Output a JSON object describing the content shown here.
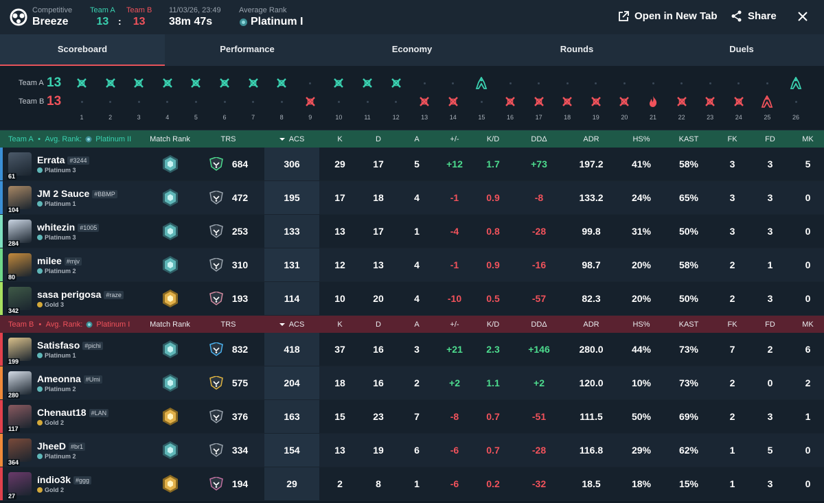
{
  "header": {
    "mode_label": "Competitive",
    "map_name": "Breeze",
    "team_a_label": "Team A",
    "team_b_label": "Team B",
    "team_a_score": "13",
    "team_b_score": "13",
    "score_sep": ":",
    "date": "11/03/26, 23:49",
    "duration": "38m 47s",
    "avg_rank_label": "Average Rank",
    "avg_rank": "Platinum I",
    "open_tab_label": "Open in New Tab",
    "share_label": "Share",
    "colors": {
      "team_a": "#3ad1b0",
      "team_b": "#f0525b"
    }
  },
  "tabs": [
    "Scoreboard",
    "Performance",
    "Economy",
    "Rounds",
    "Duels"
  ],
  "timeline": {
    "team_a_label": "Team A",
    "team_b_label": "Team B",
    "team_a_score": "13",
    "team_b_score": "13",
    "rounds": [
      {
        "n": "1",
        "w": "A",
        "t": "elim"
      },
      {
        "n": "2",
        "w": "A",
        "t": "elim"
      },
      {
        "n": "3",
        "w": "A",
        "t": "elim"
      },
      {
        "n": "4",
        "w": "A",
        "t": "elim"
      },
      {
        "n": "5",
        "w": "A",
        "t": "elim"
      },
      {
        "n": "6",
        "w": "A",
        "t": "elim"
      },
      {
        "n": "7",
        "w": "A",
        "t": "elim"
      },
      {
        "n": "8",
        "w": "A",
        "t": "elim"
      },
      {
        "n": "9",
        "w": "B",
        "t": "elim"
      },
      {
        "n": "10",
        "w": "A",
        "t": "elim"
      },
      {
        "n": "11",
        "w": "A",
        "t": "elim"
      },
      {
        "n": "12",
        "w": "A",
        "t": "elim"
      },
      {
        "n": "13",
        "w": "B",
        "t": "elim"
      },
      {
        "n": "14",
        "w": "B",
        "t": "elim"
      },
      {
        "n": "15",
        "w": "A",
        "t": "defuse"
      },
      {
        "n": "16",
        "w": "B",
        "t": "elim"
      },
      {
        "n": "17",
        "w": "B",
        "t": "elim"
      },
      {
        "n": "18",
        "w": "B",
        "t": "elim"
      },
      {
        "n": "19",
        "w": "B",
        "t": "elim"
      },
      {
        "n": "20",
        "w": "B",
        "t": "elim"
      },
      {
        "n": "21",
        "w": "B",
        "t": "detonate"
      },
      {
        "n": "22",
        "w": "B",
        "t": "elim"
      },
      {
        "n": "23",
        "w": "B",
        "t": "elim"
      },
      {
        "n": "24",
        "w": "B",
        "t": "elim"
      },
      {
        "n": "25",
        "w": "B",
        "t": "defuse"
      },
      {
        "n": "26",
        "w": "A",
        "t": "defuse"
      }
    ]
  },
  "columns": [
    "Match Rank",
    "TRS",
    "ACS",
    "K",
    "D",
    "A",
    "+/-",
    "K/D",
    "DDΔ",
    "ADR",
    "HS%",
    "KAST",
    "FK",
    "FD",
    "MK"
  ],
  "team_a": {
    "label": "Team A",
    "bullet": "•",
    "avg_rank_label": "Avg. Rank:",
    "avg_rank": "Platinum II",
    "players": [
      {
        "name": "Errata",
        "tag": "#3244",
        "rank": "Platinum 3",
        "rank_color": "#5fb7b8",
        "level": "61",
        "bar": "#3b8fd6",
        "avatar": "#4c5a6a",
        "badge": "plat",
        "trs_color": "#4ddc8e",
        "trs": "684",
        "acs": "306",
        "k": "29",
        "d": "17",
        "a": "5",
        "pm": "+12",
        "kd": "1.7",
        "dd": "+73",
        "adr": "197.2",
        "hs": "41%",
        "kast": "58%",
        "fk": "3",
        "fd": "3",
        "mk": "5"
      },
      {
        "name": "JM 2 Sauce",
        "tag": "#BBMP",
        "rank": "Platinum 1",
        "rank_color": "#5fb7b8",
        "level": "104",
        "bar": "#3b8fd6",
        "avatar": "#a88764",
        "badge": "plat",
        "trs_color": "#9aa4ae",
        "trs": "472",
        "acs": "195",
        "k": "17",
        "d": "18",
        "a": "4",
        "pm": "-1",
        "kd": "0.9",
        "dd": "-8",
        "adr": "133.2",
        "hs": "24%",
        "kast": "65%",
        "fk": "3",
        "fd": "3",
        "mk": "0"
      },
      {
        "name": "whitezin",
        "tag": "#1005",
        "rank": "Platinum 3",
        "rank_color": "#5fb7b8",
        "level": "284",
        "bar": "#7fe0c0",
        "avatar": "#c9d4e2",
        "badge": "plat",
        "trs_color": "#9aa4ae",
        "trs": "253",
        "acs": "133",
        "k": "13",
        "d": "17",
        "a": "1",
        "pm": "-4",
        "kd": "0.8",
        "dd": "-28",
        "adr": "99.8",
        "hs": "31%",
        "kast": "50%",
        "fk": "3",
        "fd": "3",
        "mk": "0"
      },
      {
        "name": "milee",
        "tag": "#mjv",
        "rank": "Platinum 2",
        "rank_color": "#5fb7b8",
        "level": "80",
        "bar": "#6fd88a",
        "avatar": "#c48a3c",
        "badge": "plat",
        "trs_color": "#9aa4ae",
        "trs": "310",
        "acs": "131",
        "k": "12",
        "d": "13",
        "a": "4",
        "pm": "-1",
        "kd": "0.9",
        "dd": "-16",
        "adr": "98.7",
        "hs": "20%",
        "kast": "58%",
        "fk": "2",
        "fd": "1",
        "mk": "0"
      },
      {
        "name": "sasa perigosa",
        "tag": "#raze",
        "rank": "Gold 3",
        "rank_color": "#d4a93a",
        "level": "342",
        "bar": "#a8e060",
        "avatar": "#3f5a47",
        "badge": "gold",
        "trs_color": "#d48aa0",
        "trs": "193",
        "acs": "114",
        "k": "10",
        "d": "20",
        "a": "4",
        "pm": "-10",
        "kd": "0.5",
        "dd": "-57",
        "adr": "82.3",
        "hs": "20%",
        "kast": "50%",
        "fk": "2",
        "fd": "3",
        "mk": "0"
      }
    ]
  },
  "team_b": {
    "label": "Team B",
    "bullet": "•",
    "avg_rank_label": "Avg. Rank:",
    "avg_rank": "Platinum I",
    "players": [
      {
        "name": "Satisfaso",
        "tag": "#pichi",
        "rank": "Platinum 1",
        "rank_color": "#5fb7b8",
        "level": "199",
        "bar": "#e0414c",
        "avatar": "#d9c08a",
        "badge": "plat",
        "trs_color": "#4ab2f0",
        "trs": "832",
        "acs": "418",
        "k": "37",
        "d": "16",
        "a": "3",
        "pm": "+21",
        "kd": "2.3",
        "dd": "+146",
        "adr": "280.0",
        "hs": "44%",
        "kast": "73%",
        "fk": "7",
        "fd": "2",
        "mk": "6"
      },
      {
        "name": "Ameonna",
        "tag": "#Umi",
        "rank": "Platinum 2",
        "rank_color": "#5fb7b8",
        "level": "280",
        "bar": "#f08a3a",
        "avatar": "#d4dce6",
        "badge": "plat",
        "trs_color": "#e0b440",
        "trs": "575",
        "acs": "204",
        "k": "18",
        "d": "16",
        "a": "2",
        "pm": "+2",
        "kd": "1.1",
        "dd": "+2",
        "adr": "120.0",
        "hs": "10%",
        "kast": "73%",
        "fk": "2",
        "fd": "0",
        "mk": "2"
      },
      {
        "name": "Chenaut18",
        "tag": "#LAN",
        "rank": "Gold 2",
        "rank_color": "#d4a93a",
        "level": "117",
        "bar": "#e0414c",
        "avatar": "#8a5a60",
        "badge": "gold",
        "trs_color": "#9aa4ae",
        "trs": "376",
        "acs": "163",
        "k": "15",
        "d": "23",
        "a": "7",
        "pm": "-8",
        "kd": "0.7",
        "dd": "-51",
        "adr": "111.5",
        "hs": "50%",
        "kast": "69%",
        "fk": "2",
        "fd": "3",
        "mk": "1"
      },
      {
        "name": "JheeD",
        "tag": "#br1",
        "rank": "Platinum 2",
        "rank_color": "#5fb7b8",
        "level": "364",
        "bar": "#f08a3a",
        "avatar": "#7a4a3a",
        "badge": "plat",
        "trs_color": "#9aa4ae",
        "trs": "334",
        "acs": "154",
        "k": "13",
        "d": "19",
        "a": "6",
        "pm": "-6",
        "kd": "0.7",
        "dd": "-28",
        "adr": "116.8",
        "hs": "29%",
        "kast": "62%",
        "fk": "1",
        "fd": "5",
        "mk": "0"
      },
      {
        "name": "índio3k",
        "tag": "#ggg",
        "rank": "Gold 2",
        "rank_color": "#d4a93a",
        "level": "27",
        "bar": "#e0414c",
        "avatar": "#6a3a6a",
        "badge": "gold",
        "trs_color": "#c070a0",
        "trs": "194",
        "acs": "29",
        "k": "2",
        "d": "8",
        "a": "1",
        "pm": "-6",
        "kd": "0.2",
        "dd": "-32",
        "adr": "18.5",
        "hs": "18%",
        "kast": "15%",
        "fk": "1",
        "fd": "3",
        "mk": "0"
      }
    ]
  }
}
